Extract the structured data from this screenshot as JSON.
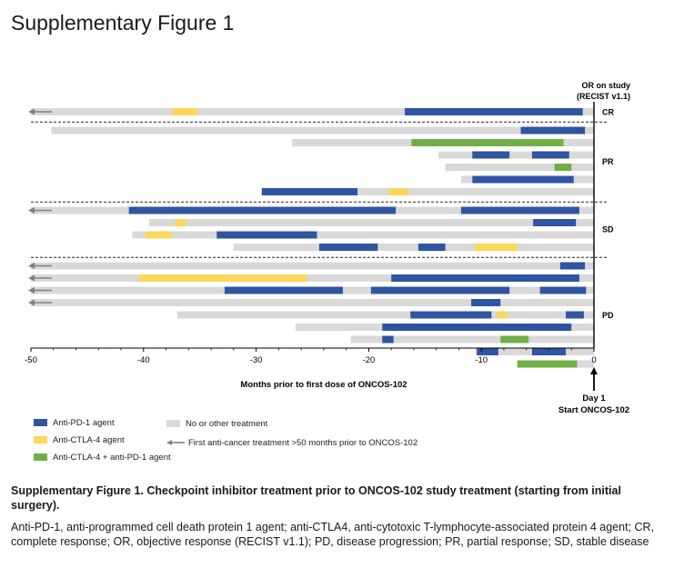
{
  "figure_title": "Supplementary Figure 1",
  "response_header": [
    "OR on study",
    "(RECIST v1.1)"
  ],
  "day1_label": [
    "Day 1",
    "Start ONCOS-102"
  ],
  "legend": {
    "anti_pd1": "Anti-PD-1 agent",
    "anti_ctla4": "Anti-CTLA-4 agent",
    "combo": "Anti-CTLA-4  + anti-PD-1 agent",
    "none": "No or other treatment",
    "arrow": "First anti-cancer treatment >50 months prior to ONCOS-102"
  },
  "colors": {
    "pd1": "#2e55a1",
    "ctla4": "#fdd75a",
    "combo": "#6fb044",
    "none": "#d9d9d9",
    "arrow": "#808080"
  },
  "caption": {
    "title": "Supplementary Figure 1. Checkpoint inhibitor treatment prior to ONCOS-102 study treatment (starting from initial surgery).",
    "body": "Anti-PD-1, anti-programmed cell death protein 1 agent; anti-CTLA4, anti-cytotoxic T-lymphocyte-associated protein 4 agent; CR, complete response; OR, objective response (RECIST v1.1); PD, disease progression; PR, partial response; SD, stable disease"
  },
  "chart_data": {
    "type": "bar",
    "orientation": "horizontal-gantt",
    "xlabel": "Months prior to first dose of ONCOS-102",
    "xlim": [
      -50,
      0
    ],
    "xticks": [
      -50,
      -40,
      -30,
      -20,
      -10,
      0
    ],
    "groups": [
      {
        "label": "CR",
        "rows": [
          {
            "arrow": true,
            "start": -50,
            "segments": [
              {
                "type": "ctla4",
                "from": -37.5,
                "to": -35.2
              },
              {
                "type": "pd1",
                "from": -16.8,
                "to": -1.0
              }
            ]
          }
        ]
      },
      {
        "label": "PR",
        "rows": [
          {
            "arrow": false,
            "start": -48.2,
            "segments": [
              {
                "type": "pd1",
                "from": -6.5,
                "to": -0.8
              }
            ]
          },
          {
            "arrow": false,
            "start": -26.8,
            "segments": [
              {
                "type": "combo",
                "from": -16.2,
                "to": -2.7
              }
            ]
          },
          {
            "arrow": false,
            "start": -13.8,
            "segments": [
              {
                "type": "pd1",
                "from": -10.8,
                "to": -7.5
              },
              {
                "type": "pd1",
                "from": -5.5,
                "to": -2.2
              }
            ]
          },
          {
            "arrow": false,
            "start": -13.2,
            "segments": [
              {
                "type": "combo",
                "from": -3.5,
                "to": -2.0
              }
            ]
          },
          {
            "arrow": false,
            "start": -11.8,
            "segments": [
              {
                "type": "pd1",
                "from": -10.8,
                "to": -1.8
              }
            ]
          },
          {
            "arrow": false,
            "start": -29.5,
            "segments": [
              {
                "type": "pd1",
                "from": -29.5,
                "to": -21.0
              },
              {
                "type": "ctla4",
                "from": -18.2,
                "to": -16.5
              }
            ]
          }
        ]
      },
      {
        "label": "SD",
        "rows": [
          {
            "arrow": true,
            "start": -50,
            "segments": [
              {
                "type": "pd1",
                "from": -41.3,
                "to": -17.6
              },
              {
                "type": "pd1",
                "from": -11.8,
                "to": -1.3
              }
            ]
          },
          {
            "arrow": false,
            "start": -39.5,
            "segments": [
              {
                "type": "ctla4",
                "from": -37.2,
                "to": -36.2
              },
              {
                "type": "pd1",
                "from": -5.4,
                "to": -1.6
              }
            ]
          },
          {
            "arrow": false,
            "start": -41.0,
            "segments": [
              {
                "type": "ctla4",
                "from": -39.8,
                "to": -37.5
              },
              {
                "type": "pd1",
                "from": -33.5,
                "to": -24.6
              }
            ]
          },
          {
            "arrow": false,
            "start": -32.0,
            "segments": [
              {
                "type": "pd1",
                "from": -24.4,
                "to": -19.2
              },
              {
                "type": "pd1",
                "from": -15.6,
                "to": -13.2
              },
              {
                "type": "ctla4",
                "from": -10.6,
                "to": -6.8
              }
            ]
          }
        ]
      },
      {
        "label": "PD",
        "rows": [
          {
            "arrow": true,
            "start": -50,
            "segments": [
              {
                "type": "pd1",
                "from": -3.0,
                "to": -0.8
              }
            ]
          },
          {
            "arrow": true,
            "start": -50,
            "segments": [
              {
                "type": "ctla4",
                "from": -40.4,
                "to": -25.5
              },
              {
                "type": "pd1",
                "from": -18.0,
                "to": -1.3
              }
            ]
          },
          {
            "arrow": true,
            "start": -50,
            "segments": [
              {
                "type": "pd1",
                "from": -32.8,
                "to": -22.3
              },
              {
                "type": "pd1",
                "from": -19.8,
                "to": -7.5
              },
              {
                "type": "pd1",
                "from": -4.8,
                "to": -0.7
              }
            ]
          },
          {
            "arrow": true,
            "start": -50,
            "segments": [
              {
                "type": "pd1",
                "from": -10.9,
                "to": -8.3
              }
            ]
          },
          {
            "arrow": false,
            "start": -37.0,
            "segments": [
              {
                "type": "pd1",
                "from": -16.3,
                "to": -9.1
              },
              {
                "type": "ctla4",
                "from": -8.6,
                "to": -7.7
              },
              {
                "type": "pd1",
                "from": -2.5,
                "to": -0.9
              }
            ]
          },
          {
            "arrow": false,
            "start": -26.5,
            "segments": [
              {
                "type": "pd1",
                "from": -18.8,
                "to": -2.0
              }
            ]
          },
          {
            "arrow": false,
            "start": -21.6,
            "segments": [
              {
                "type": "pd1",
                "from": -18.8,
                "to": -17.8
              },
              {
                "type": "combo",
                "from": -8.3,
                "to": -5.8
              }
            ]
          },
          {
            "arrow": false,
            "start": -10.5,
            "segments": [
              {
                "type": "pd1",
                "from": -10.4,
                "to": -8.5
              },
              {
                "type": "pd1",
                "from": -5.5,
                "to": -2.5
              }
            ]
          },
          {
            "arrow": false,
            "start": -6.8,
            "segments": [
              {
                "type": "combo",
                "from": -6.8,
                "to": -1.5
              }
            ]
          }
        ]
      }
    ]
  }
}
